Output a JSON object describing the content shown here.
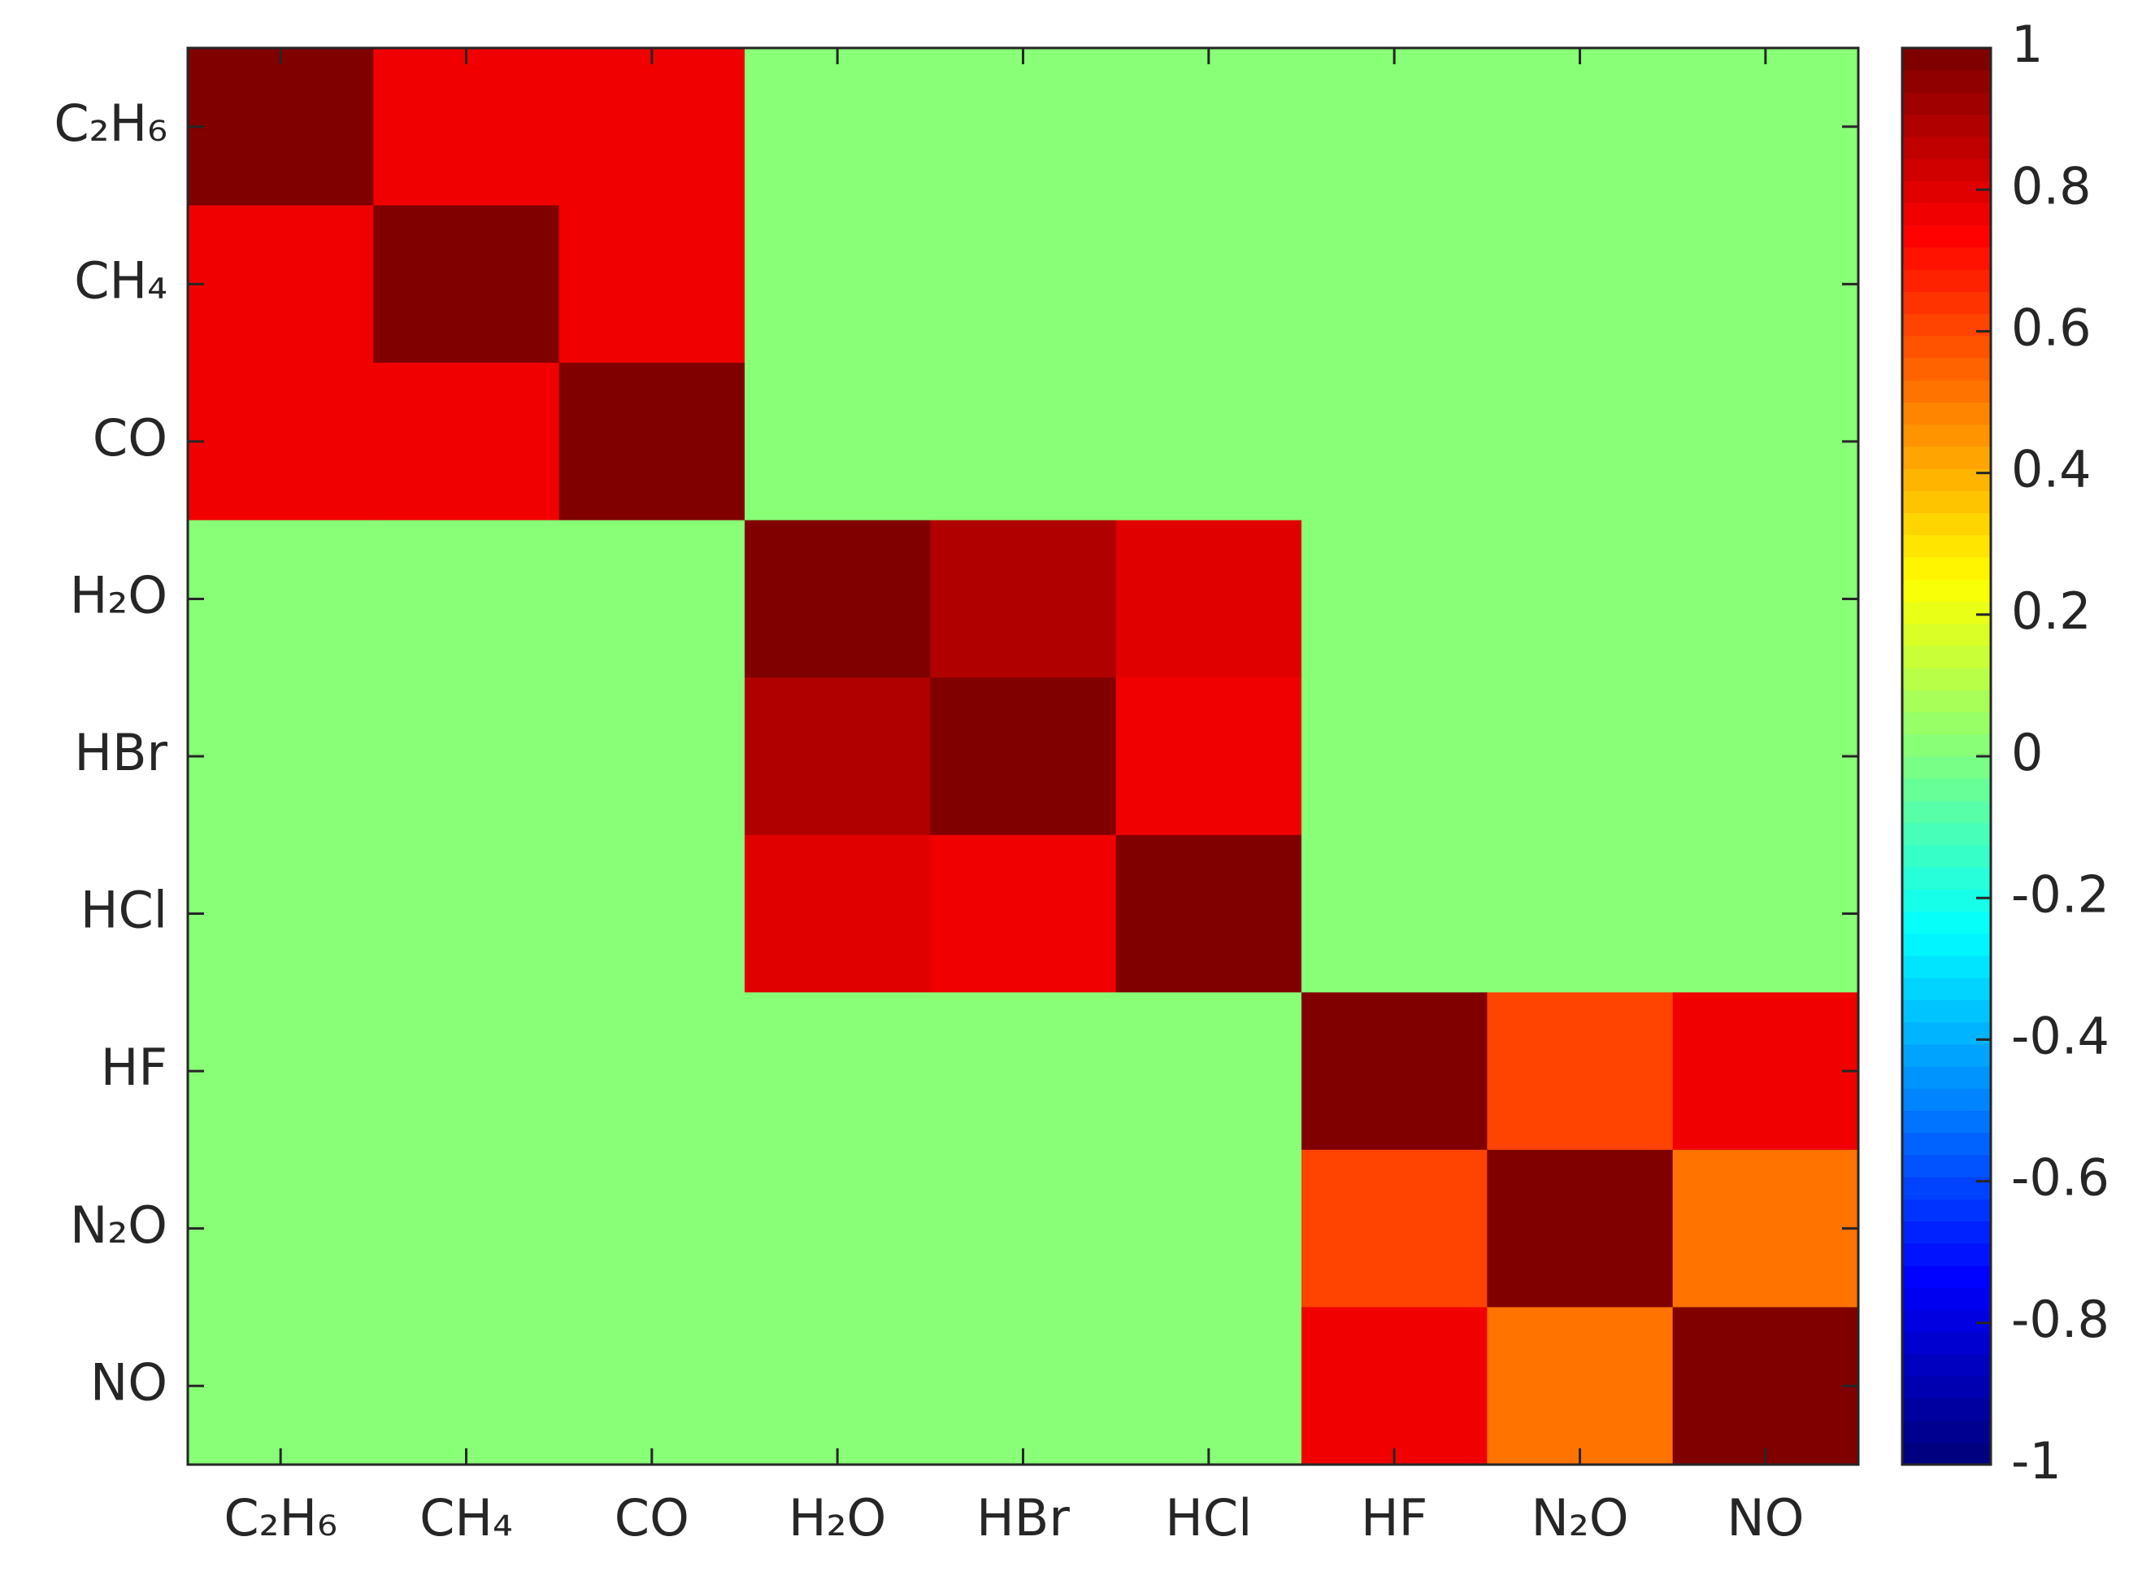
{
  "chart_data": {
    "type": "heatmap",
    "x": [
      "C₂H₆",
      "CH₄",
      "CO",
      "H₂O",
      "HBr",
      "HCl",
      "HF",
      "N₂O",
      "NO"
    ],
    "y": [
      "C₂H₆",
      "CH₄",
      "CO",
      "H₂O",
      "HBr",
      "HCl",
      "HF",
      "N₂O",
      "NO"
    ],
    "z": [
      [
        1,
        0.78,
        0.78,
        0,
        0,
        0,
        0,
        0,
        0
      ],
      [
        0.78,
        1,
        0.78,
        0,
        0,
        0,
        0,
        0,
        0
      ],
      [
        0.78,
        0.78,
        1,
        0,
        0,
        0,
        0,
        0,
        0
      ],
      [
        0,
        0,
        0,
        1,
        0.88,
        0.8,
        0,
        0,
        0
      ],
      [
        0,
        0,
        0,
        0.88,
        1,
        0.75,
        0,
        0,
        0
      ],
      [
        0,
        0,
        0,
        0.8,
        0.75,
        1,
        0,
        0,
        0
      ],
      [
        0,
        0,
        0,
        0,
        0,
        0,
        1,
        0.62,
        0.75
      ],
      [
        0,
        0,
        0,
        0,
        0,
        0,
        0.62,
        1,
        0.5
      ],
      [
        0,
        0,
        0,
        0,
        0,
        0,
        0.75,
        0.5,
        1
      ]
    ],
    "colormap": "jet",
    "zlim": [
      -1,
      1
    ],
    "zticks": [
      -1,
      -0.8,
      -0.6,
      -0.4,
      -0.2,
      0,
      0.2,
      0.4,
      0.6,
      0.8,
      1
    ]
  }
}
